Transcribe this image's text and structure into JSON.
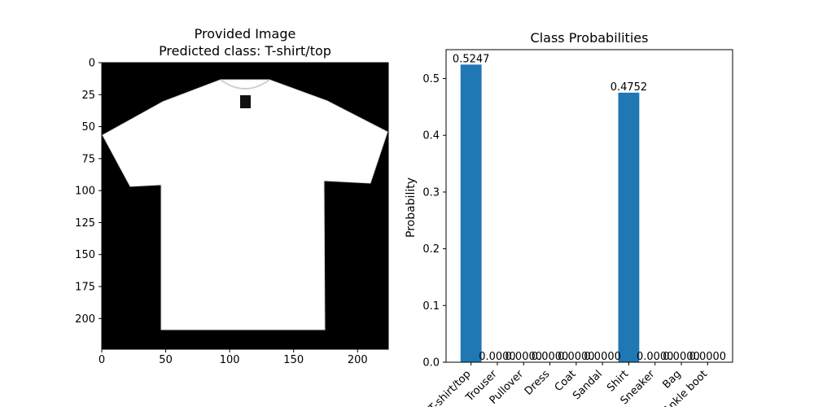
{
  "chart_data": [
    {
      "type": "image",
      "title": "Provided Image\nPredicted class: T-shirt/top",
      "title_lines": [
        "Provided Image",
        "Predicted class: T-shirt/top"
      ],
      "image": {
        "width": 224,
        "height": 224,
        "content": "white t-shirt on black background"
      },
      "xlim": [
        0,
        224
      ],
      "ylim": [
        224,
        0
      ],
      "xticks": [
        0,
        50,
        100,
        150,
        200
      ],
      "yticks": [
        0,
        25,
        50,
        75,
        100,
        125,
        150,
        175,
        200
      ],
      "grid": false
    },
    {
      "type": "bar",
      "title": "Class Probabilities",
      "xlabel": "",
      "ylabel": "Probability",
      "categories": [
        "T-shirt/top",
        "Trouser",
        "Pullover",
        "Dress",
        "Coat",
        "Sandal",
        "Shirt",
        "Sneaker",
        "Bag",
        "Ankle boot"
      ],
      "values": [
        0.5247,
        0.0,
        0.0,
        0.0,
        0.0,
        0.0,
        0.4752,
        0.0,
        0.0,
        0.0
      ],
      "value_labels": [
        "0.5247",
        "0.0000",
        "0.0000",
        "0.0000",
        "0.0000",
        "0.0000",
        "0.4752",
        "0.0000",
        "0.0000",
        "0.0000"
      ],
      "ylim": [
        0,
        0.551
      ],
      "yticks": [
        0.0,
        0.1,
        0.2,
        0.3,
        0.4,
        0.5
      ],
      "ytick_labels": [
        "0.0",
        "0.1",
        "0.2",
        "0.3",
        "0.4",
        "0.5"
      ],
      "bar_color": "#1f77b4",
      "grid": false,
      "legend": "none"
    }
  ]
}
